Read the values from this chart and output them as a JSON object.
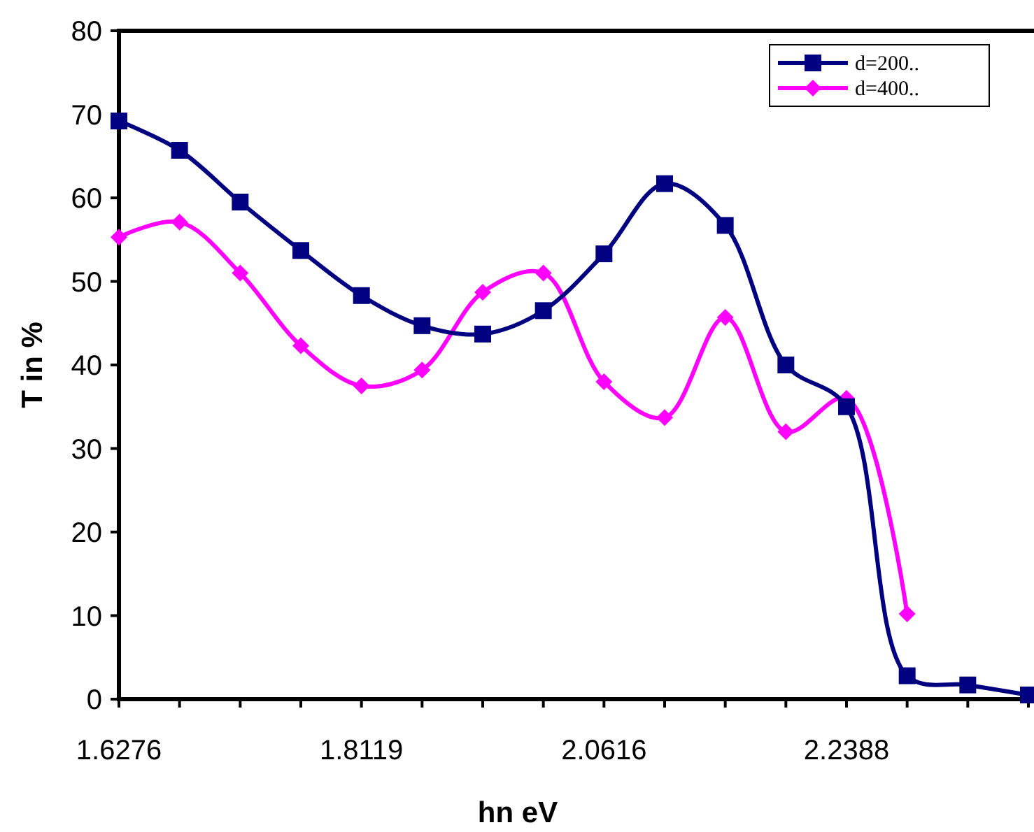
{
  "chart_data": {
    "type": "line",
    "xlabel": "hn eV",
    "ylabel": "T in %",
    "categories": [
      "1.6276",
      null,
      null,
      null,
      "1.8119",
      null,
      null,
      null,
      "2.0616",
      null,
      null,
      null,
      "2.2388",
      null,
      null,
      null
    ],
    "ylim": [
      0,
      80
    ],
    "yticks": [
      0,
      10,
      20,
      30,
      40,
      50,
      60,
      70,
      80
    ],
    "grid": false,
    "legend": "top right",
    "series": [
      {
        "name": "d=200..",
        "color": "#000080",
        "marker": "square",
        "values": [
          69.2,
          65.7,
          59.5,
          53.7,
          48.3,
          44.7,
          43.7,
          46.5,
          53.3,
          61.7,
          56.7,
          40,
          35,
          2.8,
          1.7,
          0.5
        ]
      },
      {
        "name": "d=400..",
        "color": "#ff00ff",
        "marker": "diamond",
        "values": [
          55.3,
          57.1,
          51,
          42.3,
          37.5,
          39.4,
          48.7,
          51,
          38,
          33.7,
          45.7,
          32,
          36,
          10.2,
          null,
          null
        ]
      }
    ]
  }
}
